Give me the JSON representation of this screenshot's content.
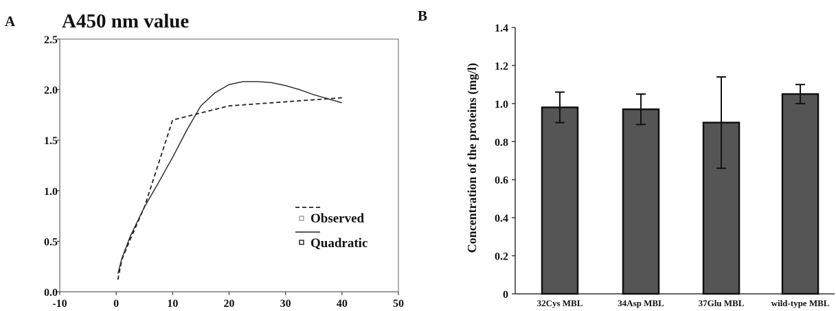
{
  "panels": {
    "a_label": "A",
    "b_label": "B"
  },
  "chart_data": [
    {
      "type": "line",
      "title": "A450 nm value",
      "xlabel": "",
      "ylabel": "",
      "xlim": [
        -10,
        50
      ],
      "ylim": [
        0.0,
        2.5
      ],
      "x_ticks": [
        "-10",
        "0",
        "10",
        "20",
        "30",
        "40",
        "50"
      ],
      "y_ticks": [
        "0.0",
        "0.5",
        "1.0",
        "1.5",
        "2.0",
        "2.5"
      ],
      "grid": false,
      "legend_position": "bottom-right",
      "series": [
        {
          "name": "Observed",
          "style": "dashed",
          "x": [
            0.3,
            1,
            2.5,
            5,
            7.5,
            10,
            20,
            30,
            40
          ],
          "y": [
            0.12,
            0.32,
            0.52,
            0.84,
            1.27,
            1.7,
            1.84,
            1.88,
            1.92
          ]
        },
        {
          "name": "Quadratic",
          "style": "solid",
          "x": [
            0.3,
            1,
            2.5,
            5,
            7.5,
            10,
            12.5,
            15,
            17.5,
            20,
            22.5,
            25,
            27.5,
            30,
            32.5,
            35,
            37.5,
            40
          ],
          "y": [
            0.18,
            0.33,
            0.55,
            0.84,
            1.08,
            1.33,
            1.6,
            1.84,
            1.97,
            2.05,
            2.08,
            2.08,
            2.07,
            2.04,
            2.0,
            1.95,
            1.91,
            1.87
          ]
        }
      ]
    },
    {
      "type": "bar",
      "title": "",
      "xlabel": "",
      "ylabel": "Concentration of the proteins (mg/l)",
      "ylim": [
        0,
        1.4
      ],
      "y_ticks": [
        "0",
        "0.2",
        "0.4",
        "0.6",
        "0.8",
        "1.0",
        "1.2",
        "1.4"
      ],
      "categories": [
        "32Cys MBL",
        "34Asp MBL",
        "37Glu MBL",
        "wild-type MBL"
      ],
      "values": [
        0.98,
        0.97,
        0.9,
        1.05
      ],
      "errors": [
        0.08,
        0.08,
        0.24,
        0.05
      ],
      "bar_color": "#555555",
      "grid": false
    }
  ]
}
